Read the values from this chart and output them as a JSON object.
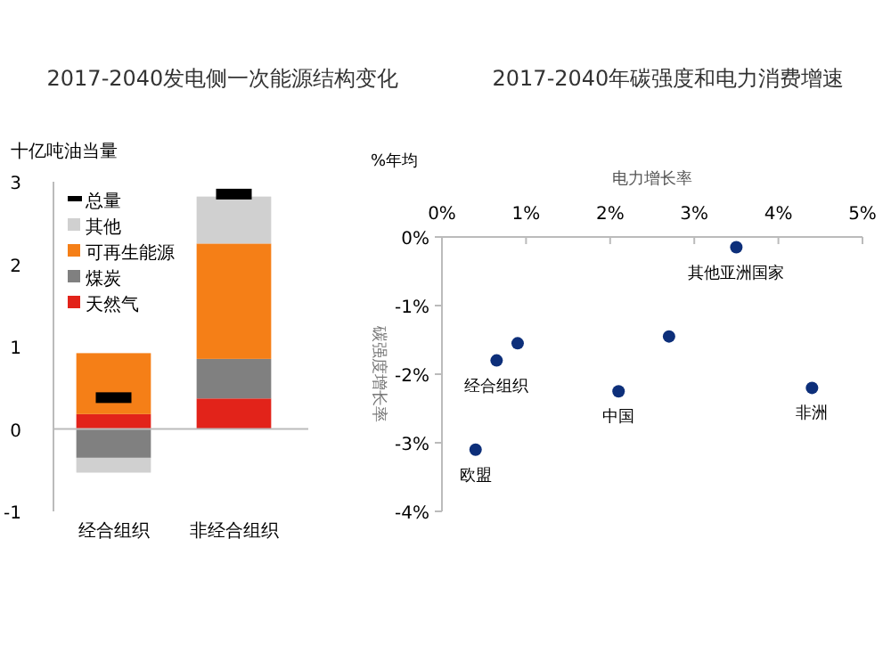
{
  "chart_data": [
    {
      "type": "bar",
      "stacked": true,
      "title": "2017-2040发电侧一次能源结构变化",
      "ylabel": "十亿吨油当量",
      "categories": [
        "经合组织",
        "非经合组织"
      ],
      "ylim": [
        -1,
        3
      ],
      "yticks": [
        -1,
        0,
        1,
        2,
        3
      ],
      "legend": "top left",
      "ref_lines": [
        {
          "axis": "y",
          "value": 0,
          "color": "#bbbbbb"
        }
      ],
      "series": [
        {
          "name": "天然气",
          "color": "#e2231a",
          "values": [
            0.18,
            0.37
          ]
        },
        {
          "name": "煤炭",
          "color": "#808080",
          "values": [
            -0.35,
            0.48
          ]
        },
        {
          "name": "可再生能源",
          "color": "#f57f17",
          "values": [
            0.74,
            1.4
          ]
        },
        {
          "name": "其他",
          "color": "#d0d0d0",
          "values": [
            -0.18,
            0.57
          ]
        },
        {
          "name": "总量",
          "type": "scatter",
          "color": "#000000",
          "values": [
            0.38,
            2.85
          ]
        }
      ]
    },
    {
      "type": "scatter",
      "title": "2017-2040年碳强度和电力消费增速",
      "xlabel": "电力增长率",
      "ylabel": "碳强度增长率",
      "xlim": [
        0,
        5
      ],
      "xticks": [
        {
          "value": 0,
          "label": "0%"
        },
        {
          "value": 1,
          "label": "1%"
        },
        {
          "value": 2,
          "label": "2%"
        },
        {
          "value": 3,
          "label": "3%"
        },
        {
          "value": 4,
          "label": "4%"
        },
        {
          "value": 5,
          "label": "5%"
        }
      ],
      "ylim": [
        -4,
        0
      ],
      "yticks": [
        {
          "value": 0,
          "label": "0%"
        },
        {
          "value": -1,
          "label": "-1%"
        },
        {
          "value": -2,
          "label": "-2%"
        },
        {
          "value": -3,
          "label": "-3%"
        },
        {
          "value": -4,
          "label": "-4%"
        }
      ],
      "grid": false,
      "marker": "circle",
      "series": [
        {
          "color": "#0d2f7a",
          "x": [
            0.4,
            0.65,
            0.9,
            2.1,
            2.7,
            3.5,
            4.4
          ],
          "values": [
            -3.1,
            -1.8,
            -1.55,
            -2.25,
            -1.45,
            -0.15,
            -2.2
          ]
        }
      ],
      "annotations": [
        "%年均",
        {
          "text": "欧盟",
          "x": 0.4,
          "y": -3.1
        },
        {
          "text": "经合组织",
          "x": 0.65,
          "y": -1.8
        },
        {
          "text": "中国",
          "x": 2.1,
          "y": -2.25
        },
        {
          "text": "其他亚洲国家",
          "x": 3.5,
          "y": -0.15
        },
        {
          "text": "非洲",
          "x": 4.4,
          "y": -2.2
        }
      ]
    }
  ]
}
